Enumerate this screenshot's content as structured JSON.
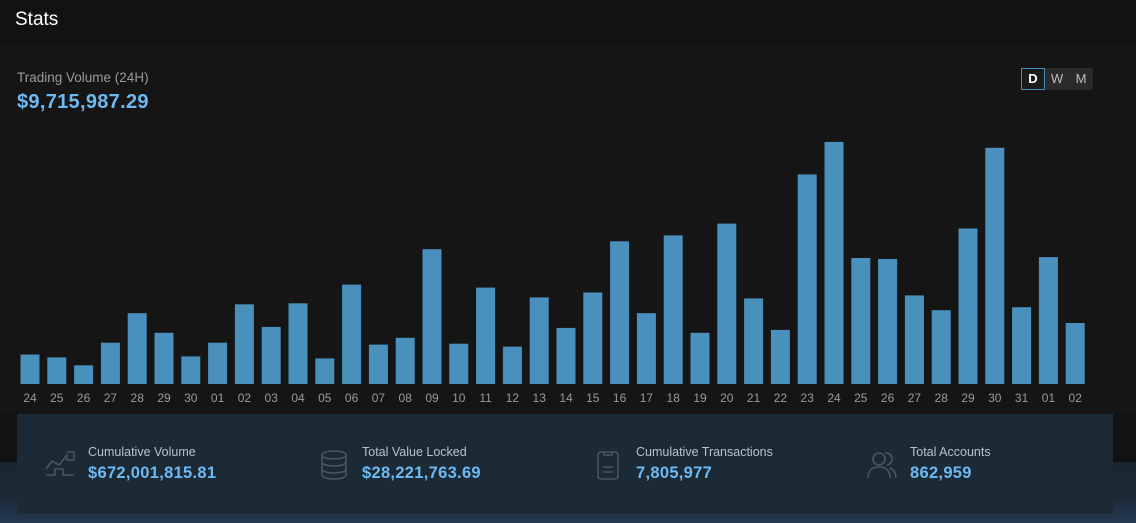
{
  "header": {
    "title": "Stats"
  },
  "volume": {
    "label": "Trading Volume (24H)",
    "value": "$9,715,987.29"
  },
  "range": {
    "options": [
      "D",
      "W",
      "M"
    ],
    "selected": "D"
  },
  "colors": {
    "bar": "#4a90bd",
    "accent": "#6db9f2",
    "tick": "#9a9a9a"
  },
  "chart_data": {
    "type": "bar",
    "categories": [
      "24",
      "25",
      "26",
      "27",
      "28",
      "29",
      "30",
      "01",
      "02",
      "03",
      "04",
      "05",
      "06",
      "07",
      "08",
      "09",
      "10",
      "11",
      "12",
      "13",
      "14",
      "15",
      "16",
      "17",
      "18",
      "19",
      "20",
      "21",
      "22",
      "23",
      "24",
      "25",
      "26",
      "27",
      "28",
      "29",
      "30",
      "31",
      "01",
      "02"
    ],
    "values": [
      30,
      27,
      19,
      42,
      72,
      52,
      28,
      42,
      81,
      58,
      82,
      26,
      101,
      40,
      47,
      137,
      41,
      98,
      38,
      88,
      57,
      93,
      145,
      72,
      151,
      52,
      163,
      87,
      55,
      213,
      246,
      128,
      127,
      90,
      75,
      158,
      240,
      78,
      129,
      62
    ],
    "ylim": [
      0,
      250
    ],
    "grid": false
  },
  "stats": [
    {
      "icon": "cumulative-volume-icon",
      "label": "Cumulative Volume",
      "value": "$672,001,815.81"
    },
    {
      "icon": "database-icon",
      "label": "Total Value Locked",
      "value": "$28,221,763.69"
    },
    {
      "icon": "clipboard-icon",
      "label": "Cumulative Transactions",
      "value": "7,805,977"
    },
    {
      "icon": "users-icon",
      "label": "Total Accounts",
      "value": "862,959"
    }
  ]
}
